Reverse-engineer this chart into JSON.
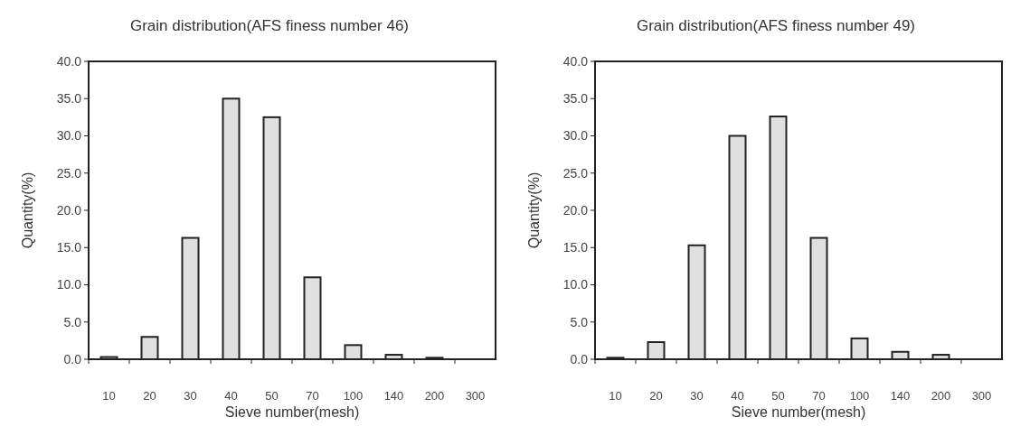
{
  "chart_data": [
    {
      "type": "bar",
      "title": "Grain distribution(AFS finess number 46)",
      "xlabel": "Sieve number(mesh)",
      "ylabel": "Quantity(%)",
      "categories": [
        "10",
        "20",
        "30",
        "40",
        "50",
        "70",
        "100",
        "140",
        "200",
        "300"
      ],
      "values": [
        0.3,
        3.0,
        16.3,
        35.0,
        32.5,
        11.0,
        1.9,
        0.6,
        0.2,
        0
      ],
      "color": "#e0e0e0",
      "ylim": [
        0,
        40
      ],
      "yticks": [
        {
          "value": 0,
          "label": "0.0"
        },
        {
          "value": 5,
          "label": "5.0"
        },
        {
          "value": 10,
          "label": "10.0"
        },
        {
          "value": 15,
          "label": "15.0"
        },
        {
          "value": 20,
          "label": "20.0"
        },
        {
          "value": 25,
          "label": "25.0"
        },
        {
          "value": 30,
          "label": "30.0"
        },
        {
          "value": 35,
          "label": "35.0"
        },
        {
          "value": 40,
          "label": "40.0"
        }
      ]
    },
    {
      "type": "bar",
      "title": "Grain distribution(AFS finess number 49)",
      "xlabel": "Sieve number(mesh)",
      "ylabel": "Quantity(%)",
      "categories": [
        "10",
        "20",
        "30",
        "40",
        "50",
        "70",
        "100",
        "140",
        "200",
        "300"
      ],
      "values": [
        0.2,
        2.3,
        15.3,
        30.0,
        32.6,
        16.3,
        2.8,
        1.0,
        0.6,
        0
      ],
      "color": "#e0e0e0",
      "ylim": [
        0,
        40
      ],
      "yticks": [
        {
          "value": 0,
          "label": "0.0"
        },
        {
          "value": 5,
          "label": "5.0"
        },
        {
          "value": 10,
          "label": "10.0"
        },
        {
          "value": 15,
          "label": "15.0"
        },
        {
          "value": 20,
          "label": "20.0"
        },
        {
          "value": 25,
          "label": "25.0"
        },
        {
          "value": 30,
          "label": "30.0"
        },
        {
          "value": 35,
          "label": "35.0"
        },
        {
          "value": 40,
          "label": "40.0"
        }
      ]
    }
  ]
}
